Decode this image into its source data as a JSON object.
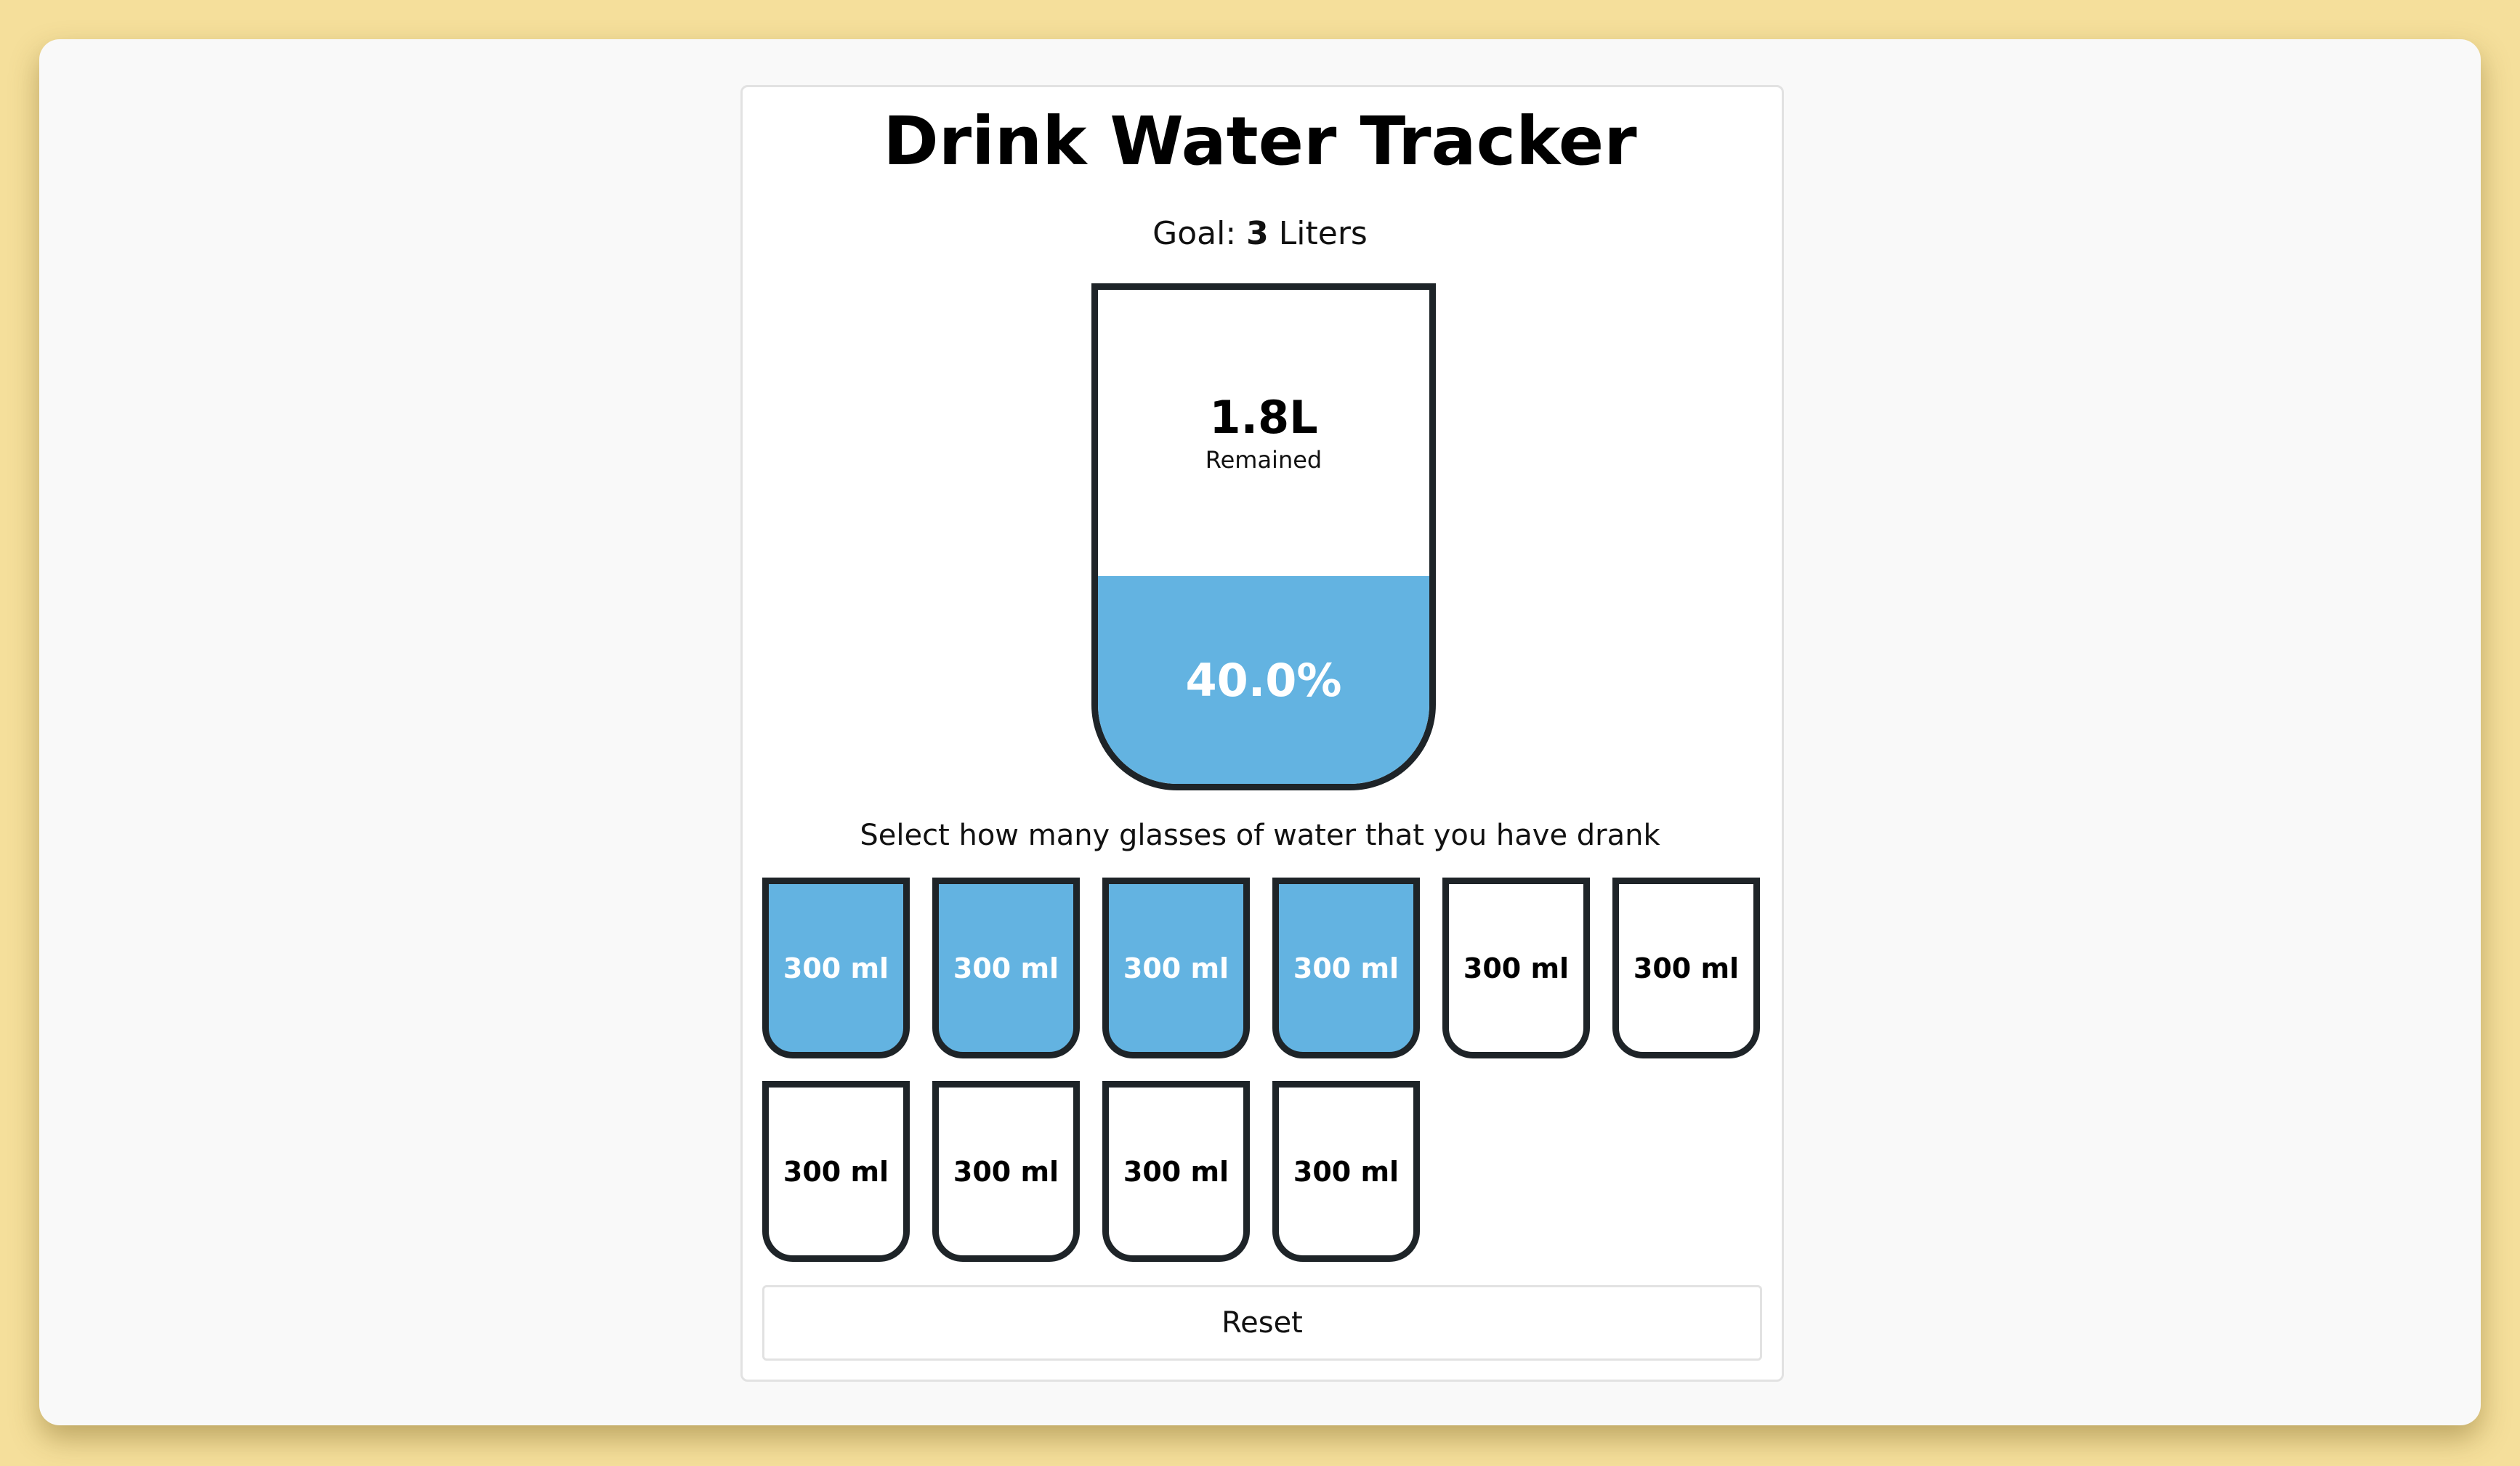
{
  "app": {
    "title": "Drink Water Tracker"
  },
  "goal": {
    "prefix": "Goal: ",
    "amount": "3",
    "unit": " Liters"
  },
  "big_cup": {
    "remained_value": "1.8L",
    "remained_label": "Remained",
    "percentage_text": "40.0%",
    "fill_fraction": 0.4
  },
  "instruction": "Select how many glasses of water that you have drank",
  "cups": [
    {
      "label": "300 ml",
      "full": true
    },
    {
      "label": "300 ml",
      "full": true
    },
    {
      "label": "300 ml",
      "full": true
    },
    {
      "label": "300 ml",
      "full": true
    },
    {
      "label": "300 ml",
      "full": false
    },
    {
      "label": "300 ml",
      "full": false
    },
    {
      "label": "300 ml",
      "full": false
    },
    {
      "label": "300 ml",
      "full": false
    },
    {
      "label": "300 ml",
      "full": false
    },
    {
      "label": "300 ml",
      "full": false
    }
  ],
  "reset_label": "Reset",
  "colors": {
    "page_background": "#f5df9b",
    "water_fill": "#63b3e1",
    "cup_border": "#1e2428"
  }
}
